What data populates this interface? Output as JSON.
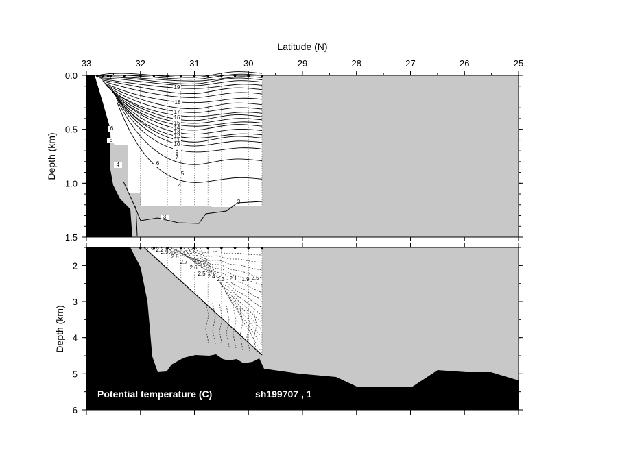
{
  "chart_data": {
    "type": "contour",
    "title": "",
    "xlabel": "Latitude (N)",
    "ylabel": "Depth (km)",
    "x_axis": {
      "ticks": [
        33,
        32,
        31,
        30,
        29,
        28,
        27,
        26,
        25
      ],
      "reversed": true,
      "range": [
        33,
        25
      ]
    },
    "panels": [
      {
        "name": "upper",
        "ylim": [
          0.0,
          1.5
        ],
        "y_ticks": [
          "0.0",
          "0.5",
          "1.0",
          "1.5"
        ],
        "contour_levels": [
          3,
          4,
          5,
          6,
          7,
          8,
          9,
          10,
          11,
          12,
          13,
          14,
          15,
          16,
          17,
          18,
          19,
          20,
          21,
          22,
          23,
          24,
          25,
          26
        ],
        "labels": [
          "18",
          "17",
          "16",
          "15",
          "14",
          "13",
          "12",
          "11",
          "10",
          "9",
          "8",
          "7",
          "6",
          "5",
          "4",
          "3",
          "3",
          "5",
          "6",
          "4",
          "19"
        ]
      },
      {
        "name": "lower",
        "ylim": [
          1.5,
          6.0
        ],
        "y_ticks": [
          "2",
          "3",
          "4",
          "5",
          "6"
        ],
        "contour_levels": [
          1.9,
          2.0,
          2.1,
          2.2,
          2.3,
          2.4,
          2.5,
          2.6,
          2.7,
          2.8,
          2.9
        ],
        "labels": [
          "2.9",
          "2.8",
          "2.7",
          "2.6",
          "2.5",
          "2.4",
          "2.3",
          "2.1",
          "1.9",
          "2.5",
          "2.2"
        ]
      }
    ],
    "station_latitudes": [
      32.8,
      32.7,
      32.6,
      32.55,
      32.3,
      32.0,
      31.75,
      31.5,
      31.25,
      31.0,
      30.75,
      30.5,
      30.25,
      30.0,
      29.75
    ],
    "bottom_depth_km": [
      {
        "lat": 32.5,
        "depth": 1.5
      },
      {
        "lat": 32.0,
        "depth": 2.3
      },
      {
        "lat": 31.75,
        "depth": 4.5
      },
      {
        "lat": 31.6,
        "depth": 4.95
      },
      {
        "lat": 31.3,
        "depth": 4.55
      },
      {
        "lat": 31.0,
        "depth": 4.5
      },
      {
        "lat": 30.5,
        "depth": 4.6
      },
      {
        "lat": 30.0,
        "depth": 4.7
      },
      {
        "lat": 29.75,
        "depth": 4.85
      },
      {
        "lat": 29.0,
        "depth": 5.0
      },
      {
        "lat": 28.0,
        "depth": 5.35
      },
      {
        "lat": 27.0,
        "depth": 5.2
      },
      {
        "lat": 26.5,
        "depth": 4.9
      },
      {
        "lat": 26.0,
        "depth": 4.95
      },
      {
        "lat": 25.0,
        "depth": 5.2
      }
    ],
    "annotation": "Potential temperature (C)",
    "cruise": "sh199707 , 1"
  },
  "colors": {
    "land": "#000000",
    "nodata": "#c8c8c8",
    "data_area": "#ffffff",
    "contour": "#000000"
  }
}
